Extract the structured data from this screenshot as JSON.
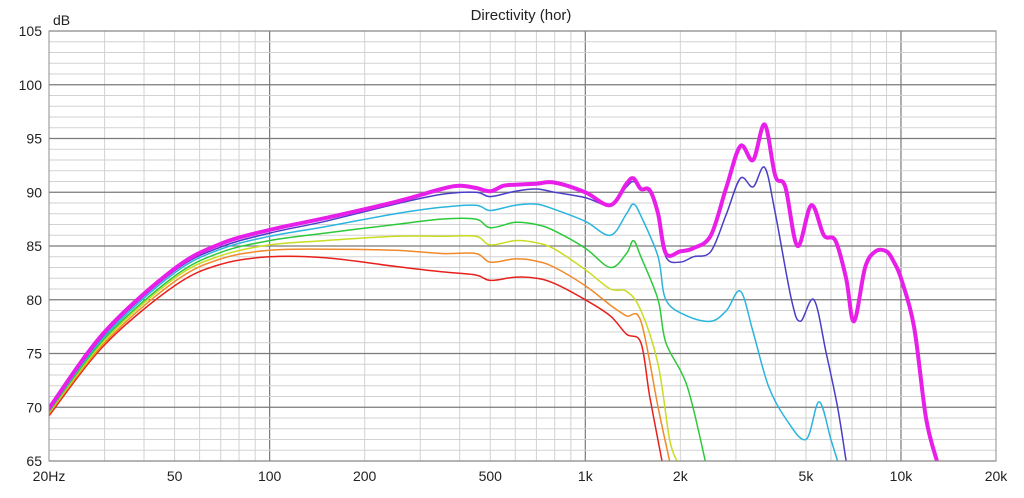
{
  "chart_data": {
    "type": "line",
    "title": "Directivity (hor)",
    "xlabel": "",
    "ylabel": "dB",
    "xscale": "log",
    "xlim": [
      20,
      20000
    ],
    "ylim": [
      65,
      105
    ],
    "grid": true,
    "x_ticks": [
      {
        "value": 20,
        "label": "20Hz"
      },
      {
        "value": 50,
        "label": "50"
      },
      {
        "value": 100,
        "label": "100"
      },
      {
        "value": 200,
        "label": "200"
      },
      {
        "value": 500,
        "label": "500"
      },
      {
        "value": 1000,
        "label": "1k"
      },
      {
        "value": 2000,
        "label": "2k"
      },
      {
        "value": 5000,
        "label": "5k"
      },
      {
        "value": 10000,
        "label": "10k"
      },
      {
        "value": 20000,
        "label": "20k"
      }
    ],
    "y_ticks": [
      65,
      70,
      75,
      80,
      85,
      90,
      95,
      100,
      105
    ],
    "series": [
      {
        "color": "#e8201c",
        "points": [
          [
            20,
            69.2
          ],
          [
            30,
            75.8
          ],
          [
            50,
            81.3
          ],
          [
            70,
            83.3
          ],
          [
            100,
            84.0
          ],
          [
            150,
            83.9
          ],
          [
            250,
            83.1
          ],
          [
            350,
            82.6
          ],
          [
            450,
            82.3
          ],
          [
            500,
            81.8
          ],
          [
            600,
            82.1
          ],
          [
            700,
            82.0
          ],
          [
            800,
            81.5
          ],
          [
            1000,
            80.0
          ],
          [
            1200,
            78.5
          ],
          [
            1350,
            76.8
          ],
          [
            1500,
            76.0
          ],
          [
            1600,
            71.0
          ],
          [
            1750,
            65.0
          ]
        ]
      },
      {
        "color": "#f08a2a",
        "points": [
          [
            20,
            69.4
          ],
          [
            30,
            76.0
          ],
          [
            50,
            81.7
          ],
          [
            70,
            83.8
          ],
          [
            100,
            84.6
          ],
          [
            150,
            84.7
          ],
          [
            250,
            84.6
          ],
          [
            350,
            84.3
          ],
          [
            450,
            84.3
          ],
          [
            500,
            83.5
          ],
          [
            600,
            83.8
          ],
          [
            700,
            83.6
          ],
          [
            800,
            83.0
          ],
          [
            1000,
            81.3
          ],
          [
            1200,
            79.5
          ],
          [
            1350,
            78.5
          ],
          [
            1500,
            78.0
          ],
          [
            1700,
            70.0
          ],
          [
            1850,
            65.0
          ]
        ]
      },
      {
        "color": "#c9dc1e",
        "points": [
          [
            20,
            69.5
          ],
          [
            30,
            76.2
          ],
          [
            50,
            82.0
          ],
          [
            70,
            84.1
          ],
          [
            100,
            85.1
          ],
          [
            150,
            85.5
          ],
          [
            250,
            85.9
          ],
          [
            350,
            85.9
          ],
          [
            450,
            85.9
          ],
          [
            500,
            85.1
          ],
          [
            600,
            85.5
          ],
          [
            700,
            85.3
          ],
          [
            800,
            84.7
          ],
          [
            1000,
            82.8
          ],
          [
            1200,
            81.0
          ],
          [
            1350,
            80.8
          ],
          [
            1500,
            79.0
          ],
          [
            1700,
            74.0
          ],
          [
            1850,
            67.0
          ],
          [
            1950,
            65.0
          ]
        ]
      },
      {
        "color": "#2cc93a",
        "points": [
          [
            20,
            69.6
          ],
          [
            30,
            76.4
          ],
          [
            50,
            82.2
          ],
          [
            70,
            84.4
          ],
          [
            100,
            85.5
          ],
          [
            150,
            86.2
          ],
          [
            250,
            87.0
          ],
          [
            350,
            87.5
          ],
          [
            450,
            87.5
          ],
          [
            500,
            86.7
          ],
          [
            600,
            87.2
          ],
          [
            700,
            87.0
          ],
          [
            800,
            86.4
          ],
          [
            1000,
            84.8
          ],
          [
            1200,
            83.0
          ],
          [
            1350,
            84.3
          ],
          [
            1420,
            85.5
          ],
          [
            1500,
            84.0
          ],
          [
            1700,
            80.0
          ],
          [
            1800,
            76.0
          ],
          [
            2100,
            72.0
          ],
          [
            2400,
            65.0
          ]
        ]
      },
      {
        "color": "#2bb4dd",
        "points": [
          [
            20,
            69.7
          ],
          [
            30,
            76.6
          ],
          [
            50,
            82.5
          ],
          [
            70,
            84.7
          ],
          [
            100,
            85.9
          ],
          [
            150,
            86.8
          ],
          [
            250,
            88.0
          ],
          [
            350,
            88.6
          ],
          [
            450,
            88.8
          ],
          [
            500,
            88.3
          ],
          [
            600,
            88.8
          ],
          [
            700,
            88.9
          ],
          [
            800,
            88.4
          ],
          [
            1000,
            87.3
          ],
          [
            1200,
            86.0
          ],
          [
            1350,
            88.0
          ],
          [
            1420,
            88.9
          ],
          [
            1500,
            87.8
          ],
          [
            1700,
            84.0
          ],
          [
            1800,
            80.0
          ],
          [
            2100,
            78.5
          ],
          [
            2500,
            78.0
          ],
          [
            2800,
            79.0
          ],
          [
            3100,
            80.8
          ],
          [
            3400,
            77.0
          ],
          [
            3800,
            72.0
          ],
          [
            4300,
            69.0
          ],
          [
            5000,
            67.0
          ],
          [
            5500,
            70.5
          ],
          [
            6000,
            67.0
          ],
          [
            6300,
            65.0
          ]
        ]
      },
      {
        "color": "#4a3ec8",
        "points": [
          [
            20,
            69.8
          ],
          [
            30,
            76.8
          ],
          [
            50,
            82.7
          ],
          [
            70,
            84.9
          ],
          [
            100,
            86.2
          ],
          [
            150,
            87.3
          ],
          [
            250,
            88.9
          ],
          [
            350,
            89.8
          ],
          [
            450,
            90.0
          ],
          [
            500,
            89.6
          ],
          [
            600,
            90.1
          ],
          [
            700,
            90.3
          ],
          [
            800,
            90.0
          ],
          [
            1000,
            89.5
          ],
          [
            1200,
            88.8
          ],
          [
            1350,
            90.5
          ],
          [
            1420,
            91.0
          ],
          [
            1500,
            90.4
          ],
          [
            1600,
            90.0
          ],
          [
            1700,
            88.0
          ],
          [
            1800,
            84.0
          ],
          [
            2000,
            83.5
          ],
          [
            2200,
            84.0
          ],
          [
            2500,
            84.5
          ],
          [
            2800,
            88.0
          ],
          [
            3100,
            91.3
          ],
          [
            3400,
            90.5
          ],
          [
            3700,
            92.3
          ],
          [
            4000,
            88.0
          ],
          [
            4500,
            80.0
          ],
          [
            4800,
            78.0
          ],
          [
            5300,
            80.0
          ],
          [
            5800,
            75.0
          ],
          [
            6300,
            70.0
          ],
          [
            6700,
            65.0
          ]
        ]
      },
      {
        "color": "#e81fe8",
        "bold": true,
        "points": [
          [
            20,
            69.9
          ],
          [
            30,
            77.0
          ],
          [
            50,
            82.9
          ],
          [
            70,
            85.2
          ],
          [
            100,
            86.5
          ],
          [
            150,
            87.6
          ],
          [
            250,
            89.1
          ],
          [
            350,
            90.3
          ],
          [
            400,
            90.6
          ],
          [
            450,
            90.4
          ],
          [
            500,
            90.1
          ],
          [
            550,
            90.6
          ],
          [
            600,
            90.7
          ],
          [
            700,
            90.8
          ],
          [
            800,
            90.9
          ],
          [
            1000,
            90.0
          ],
          [
            1200,
            88.8
          ],
          [
            1350,
            90.8
          ],
          [
            1420,
            91.3
          ],
          [
            1500,
            90.3
          ],
          [
            1600,
            90.2
          ],
          [
            1700,
            88.0
          ],
          [
            1800,
            84.3
          ],
          [
            2000,
            84.5
          ],
          [
            2200,
            84.8
          ],
          [
            2500,
            86.0
          ],
          [
            2800,
            90.5
          ],
          [
            3100,
            94.3
          ],
          [
            3400,
            93.0
          ],
          [
            3700,
            96.3
          ],
          [
            4000,
            91.5
          ],
          [
            4300,
            90.5
          ],
          [
            4700,
            85.0
          ],
          [
            5200,
            88.8
          ],
          [
            5700,
            86.0
          ],
          [
            6200,
            85.5
          ],
          [
            6700,
            82.0
          ],
          [
            7100,
            78.0
          ],
          [
            7700,
            83.0
          ],
          [
            8300,
            84.5
          ],
          [
            9000,
            84.5
          ],
          [
            9500,
            83.5
          ],
          [
            10000,
            82.0
          ],
          [
            11000,
            77.5
          ],
          [
            12000,
            69.0
          ],
          [
            13000,
            65.0
          ]
        ]
      }
    ]
  }
}
